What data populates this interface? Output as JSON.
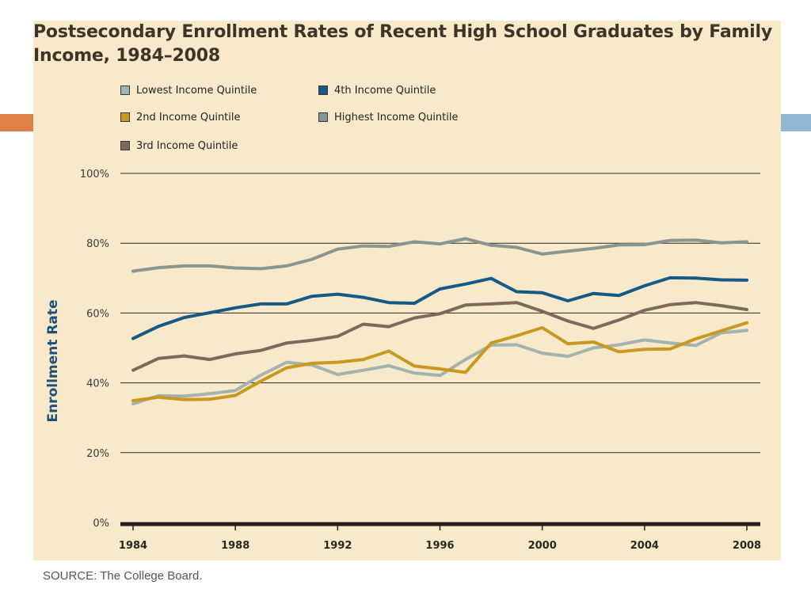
{
  "title": "Postsecondary Enrollment Rates of Recent High School Graduates by Family Income, 1984–2008",
  "source": "SOURCE: The College Board.",
  "colors": {
    "background": "#f7e9c9",
    "accent_left": "#dd8148",
    "accent_right": "#93b5d3",
    "ylabel": "#1d4f78"
  },
  "chart_data": {
    "type": "line",
    "title": "Postsecondary Enrollment Rates of Recent High School Graduates by Family Income, 1984–2008",
    "xlabel": "",
    "ylabel": "Enrollment Rate",
    "x": [
      1984,
      1985,
      1986,
      1987,
      1988,
      1989,
      1990,
      1991,
      1992,
      1993,
      1994,
      1995,
      1996,
      1997,
      1998,
      1999,
      2000,
      2001,
      2002,
      2003,
      2004,
      2005,
      2006,
      2007,
      2008
    ],
    "xlim": [
      1984,
      2008
    ],
    "ylim": [
      0,
      100
    ],
    "x_ticks": [
      "1984",
      "1988",
      "1992",
      "1996",
      "2000",
      "2004",
      "2008"
    ],
    "y_ticks": [
      "0%",
      "20%",
      "40%",
      "60%",
      "80%",
      "100%"
    ],
    "grid": "horizontal",
    "legend_position": "top-left",
    "series": [
      {
        "name": "Lowest Income Quintile",
        "color": "#a3b3ad",
        "values": [
          34.0,
          36.3,
          36.2,
          36.9,
          37.8,
          42.2,
          45.9,
          45.1,
          42.4,
          43.6,
          44.9,
          42.8,
          42.1,
          46.7,
          50.8,
          50.9,
          48.5,
          47.6,
          50.0,
          50.9,
          52.3,
          51.4,
          50.7,
          54.3,
          55.0
        ]
      },
      {
        "name": "2nd Income Quintile",
        "color": "#c9981f",
        "values": [
          34.9,
          35.9,
          35.2,
          35.3,
          36.4,
          40.5,
          44.3,
          45.6,
          45.9,
          46.7,
          49.1,
          44.8,
          44.0,
          43.0,
          51.4,
          53.5,
          55.8,
          51.2,
          51.7,
          48.9,
          49.6,
          49.7,
          52.6,
          54.9,
          57.2
        ]
      },
      {
        "name": "3rd Income Quintile",
        "color": "#7d6a5c",
        "values": [
          43.6,
          47.0,
          47.7,
          46.7,
          48.3,
          49.3,
          51.4,
          52.2,
          53.3,
          56.8,
          56.1,
          58.6,
          59.8,
          62.3,
          62.6,
          63.0,
          60.5,
          57.7,
          55.6,
          58.0,
          60.8,
          62.4,
          63.0,
          62.1,
          61.0
        ]
      },
      {
        "name": "4th Income Quintile",
        "color": "#155a86",
        "values": [
          52.7,
          56.2,
          58.7,
          60.1,
          61.5,
          62.6,
          62.6,
          64.8,
          65.4,
          64.5,
          63.0,
          62.8,
          66.9,
          68.3,
          69.9,
          66.1,
          65.8,
          63.5,
          65.6,
          65.0,
          67.8,
          70.1,
          70.0,
          69.5,
          69.4
        ]
      },
      {
        "name": "Highest Income Quintile",
        "color": "#8a9691",
        "values": [
          72.0,
          73.0,
          73.5,
          73.5,
          72.9,
          72.7,
          73.5,
          75.4,
          78.3,
          79.2,
          79.1,
          80.4,
          79.8,
          81.3,
          79.4,
          78.8,
          76.9,
          77.7,
          78.5,
          79.5,
          79.6,
          80.8,
          80.9,
          80.1,
          80.4
        ]
      }
    ]
  }
}
